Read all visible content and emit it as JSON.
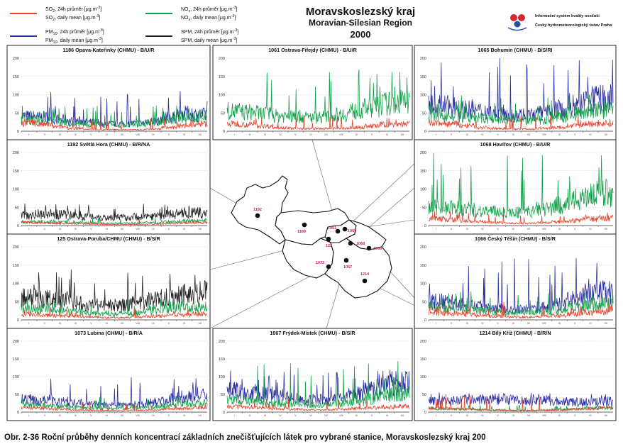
{
  "header": {
    "title": "Moravskoslezský kraj",
    "subtitle": "Moravian-Silesian Region",
    "year": "2000",
    "institute_line1": "Informační systém kvality ovzduší",
    "institute_line2": "Český hydrometeorologický ústav Praha"
  },
  "legend": [
    {
      "key": "so2_24h",
      "label_pre": "SO",
      "sub": "2",
      "label_post": ", 24h průměr [μg.m",
      "sup": "-3",
      "end": "]",
      "color": "#e8412a"
    },
    {
      "key": "so2_dm",
      "label_pre": "SO",
      "sub": "2",
      "label_post": ", daily mean [μg.m",
      "sup": "-3",
      "end": "]",
      "color": "#e8412a"
    },
    {
      "key": "pm10_24h",
      "label_pre": "PM",
      "sub": "10",
      "label_post": ", 24h průměr [μg.m",
      "sup": "-3",
      "end": "]",
      "color": "#2b2fa0"
    },
    {
      "key": "pm10_dm",
      "label_pre": "PM",
      "sub": "10",
      "label_post": ", daily mean [μg.m",
      "sup": "-3",
      "end": "]",
      "color": "#2b2fa0"
    },
    {
      "key": "nox_24h",
      "label_pre": "NO",
      "sub": "x",
      "label_post": ", 24h průměr [μg.m",
      "sup": "-3",
      "end": "]",
      "color": "#13a04a"
    },
    {
      "key": "nox_dm",
      "label_pre": "NO",
      "sub": "x",
      "label_post": ", daily mean [μg.m",
      "sup": "-3",
      "end": "]",
      "color": "#13a04a"
    },
    {
      "key": "spm_24h",
      "label_pre": "SPM, 24h průměr [μg.m",
      "sub": "",
      "label_post": "",
      "sup": "-3",
      "end": "]",
      "color": "#222222"
    },
    {
      "key": "spm_dm",
      "label_pre": "SPM, daily mean [μg.m",
      "sub": "",
      "label_post": "",
      "sup": "-3",
      "end": "]",
      "color": "#222222"
    }
  ],
  "colors": {
    "so2": "#e8412a",
    "pm10": "#2b2fa0",
    "nox": "#13a04a",
    "spm": "#222222",
    "station_dot": "#111111",
    "station_label": "#d0216a"
  },
  "caption": "Obr. 2-36  Roční průběhy denních koncentrací základních znečišťujících látek pro vybrané stanice, Moravskoslezský kraj 200",
  "chart_data": [
    {
      "type": "line",
      "title": "1186 Opava-Kateřinky (CHMU)  -  B/U/R",
      "yticks": [
        0,
        50,
        100,
        150,
        200
      ],
      "ylim": [
        0,
        200
      ],
      "x": "day of year 2000 (1–366)",
      "months": [
        "I",
        "II",
        "III",
        "IV",
        "V",
        "VI",
        "VII",
        "VIII",
        "IX",
        "X",
        "XI",
        "XII"
      ],
      "series": [
        {
          "name": "SO2",
          "color": "#e8412a",
          "monthly_mean": [
            22,
            18,
            12,
            8,
            5,
            4,
            4,
            4,
            6,
            10,
            15,
            20
          ],
          "peak": 35
        },
        {
          "name": "NOx",
          "color": "#13a04a",
          "monthly_mean": [
            32,
            30,
            26,
            20,
            18,
            16,
            16,
            18,
            24,
            32,
            40,
            40
          ],
          "peak": 70
        },
        {
          "name": "PM10",
          "color": "#2b2fa0",
          "monthly_mean": [
            40,
            38,
            32,
            28,
            24,
            20,
            20,
            22,
            28,
            38,
            48,
            45
          ],
          "peak": 110
        }
      ]
    },
    {
      "type": "line",
      "title": "1061 Ostrava-Fifejdy (CHMU)  -  B/U/R",
      "yticks": [
        0,
        50,
        100,
        150,
        200
      ],
      "ylim": [
        0,
        200
      ],
      "months": [
        "I",
        "II",
        "III",
        "IV",
        "V",
        "VI",
        "VII",
        "VIII",
        "IX",
        "X",
        "XI",
        "XII"
      ],
      "series": [
        {
          "name": "SO2",
          "color": "#e8412a",
          "monthly_mean": [
            20,
            18,
            14,
            10,
            8,
            7,
            7,
            8,
            10,
            14,
            18,
            20
          ],
          "peak": 40
        },
        {
          "name": "NOx",
          "color": "#13a04a",
          "monthly_mean": [
            55,
            52,
            48,
            42,
            40,
            38,
            40,
            45,
            55,
            65,
            75,
            80
          ],
          "peak": 170
        }
      ]
    },
    {
      "type": "line",
      "title": "1065 Bohumín (CHMU)  -  B/S/RI",
      "yticks": [
        0,
        50,
        100,
        150,
        200
      ],
      "ylim": [
        0,
        200
      ],
      "months": [
        "I",
        "II",
        "III",
        "IV",
        "V",
        "VI",
        "VII",
        "VIII",
        "IX",
        "X",
        "XI",
        "XII"
      ],
      "series": [
        {
          "name": "SO2",
          "color": "#e8412a",
          "monthly_mean": [
            22,
            20,
            15,
            10,
            8,
            6,
            6,
            8,
            10,
            15,
            20,
            22
          ],
          "peak": 45
        },
        {
          "name": "NOx",
          "color": "#13a04a",
          "monthly_mean": [
            45,
            42,
            38,
            35,
            32,
            30,
            30,
            32,
            40,
            48,
            55,
            58
          ],
          "peak": 100
        },
        {
          "name": "PM10",
          "color": "#2b2fa0",
          "monthly_mean": [
            70,
            68,
            60,
            55,
            50,
            45,
            45,
            50,
            60,
            72,
            85,
            88
          ],
          "peak": 200
        }
      ]
    },
    {
      "type": "line",
      "title": "1192 Světlá Hora (CHMU)  -  B/R/NA",
      "yticks": [
        0,
        50,
        100,
        150,
        200
      ],
      "ylim": [
        0,
        200
      ],
      "months": [
        "I",
        "II",
        "III",
        "IV",
        "V",
        "VI",
        "VII",
        "VIII",
        "IX",
        "X",
        "XI",
        "XII"
      ],
      "series": [
        {
          "name": "SO2",
          "color": "#e8412a",
          "monthly_mean": [
            8,
            7,
            6,
            5,
            4,
            3,
            3,
            3,
            4,
            5,
            7,
            8
          ],
          "peak": 15
        },
        {
          "name": "NOx",
          "color": "#13a04a",
          "monthly_mean": [
            10,
            10,
            9,
            8,
            7,
            6,
            6,
            7,
            8,
            10,
            12,
            12
          ],
          "peak": 20
        },
        {
          "name": "SPM",
          "color": "#222222",
          "monthly_mean": [
            30,
            32,
            30,
            28,
            25,
            22,
            22,
            24,
            26,
            30,
            34,
            34
          ],
          "peak": 60
        }
      ]
    },
    {
      "type": "line",
      "title": "1068 Havířov (CHMU)  -  B/U/R",
      "yticks": [
        0,
        50,
        100,
        150,
        200
      ],
      "ylim": [
        0,
        200
      ],
      "months": [
        "I",
        "II",
        "III",
        "IV",
        "V",
        "VI",
        "VII",
        "VIII",
        "IX",
        "X",
        "XI",
        "XII"
      ],
      "series": [
        {
          "name": "SO2",
          "color": "#e8412a",
          "monthly_mean": [
            18,
            16,
            12,
            10,
            8,
            6,
            6,
            8,
            10,
            14,
            18,
            20
          ],
          "peak": 40
        },
        {
          "name": "NOx",
          "color": "#13a04a",
          "monthly_mean": [
            50,
            48,
            45,
            40,
            38,
            36,
            38,
            45,
            55,
            70,
            85,
            90
          ],
          "peak": 200
        }
      ]
    },
    {
      "type": "line",
      "title": "125 Ostrava-Poruba/CHMU (CHMU)  -  B/S/R",
      "yticks": [
        0,
        50,
        100,
        150,
        200
      ],
      "ylim": [
        0,
        200
      ],
      "months": [
        "I",
        "II",
        "III",
        "IV",
        "V",
        "VI",
        "VII",
        "VIII",
        "IX",
        "X",
        "XI",
        "XII"
      ],
      "series": [
        {
          "name": "SO2",
          "color": "#e8412a",
          "monthly_mean": [
            15,
            14,
            12,
            10,
            8,
            6,
            6,
            8,
            10,
            12,
            14,
            15
          ],
          "peak": 30
        },
        {
          "name": "NOx",
          "color": "#13a04a",
          "monthly_mean": [
            30,
            28,
            25,
            22,
            20,
            18,
            18,
            20,
            25,
            30,
            35,
            38
          ],
          "peak": 60
        },
        {
          "name": "SPM",
          "color": "#222222",
          "monthly_mean": [
            60,
            58,
            55,
            48,
            42,
            40,
            40,
            45,
            55,
            65,
            72,
            75
          ],
          "peak": 140
        }
      ]
    },
    {
      "type": "line",
      "title": "1066 Český Těšín (CHMU)  -  B/S/R",
      "yticks": [
        0,
        50,
        100,
        150,
        200
      ],
      "ylim": [
        0,
        200
      ],
      "months": [
        "I",
        "II",
        "III",
        "IV",
        "V",
        "VI",
        "VII",
        "VIII",
        "IX",
        "X",
        "XI",
        "XII"
      ],
      "series": [
        {
          "name": "SO2",
          "color": "#e8412a",
          "monthly_mean": [
            20,
            18,
            15,
            12,
            10,
            8,
            8,
            10,
            12,
            16,
            20,
            22
          ],
          "peak": 50
        },
        {
          "name": "NOx",
          "color": "#13a04a",
          "monthly_mean": [
            35,
            32,
            30,
            25,
            22,
            20,
            20,
            22,
            28,
            35,
            42,
            45
          ],
          "peak": 80
        },
        {
          "name": "PM10",
          "color": "#2b2fa0",
          "monthly_mean": [
            50,
            48,
            42,
            38,
            34,
            30,
            30,
            34,
            42,
            55,
            70,
            75
          ],
          "peak": 170
        }
      ]
    },
    {
      "type": "line",
      "title": "1073 Lubina (CHMU)  -  B/R/A",
      "yticks": [
        0,
        50,
        100,
        150,
        200
      ],
      "ylim": [
        0,
        200
      ],
      "months": [
        "I",
        "II",
        "III",
        "IV",
        "V",
        "VI",
        "VII",
        "VIII",
        "IX",
        "X",
        "XI",
        "XII"
      ],
      "series": [
        {
          "name": "SO2",
          "color": "#e8412a",
          "monthly_mean": [
            12,
            10,
            8,
            6,
            5,
            4,
            4,
            5,
            6,
            8,
            10,
            12
          ],
          "peak": 25
        },
        {
          "name": "NOx",
          "color": "#13a04a",
          "monthly_mean": [
            20,
            18,
            16,
            14,
            12,
            10,
            10,
            12,
            15,
            18,
            22,
            24
          ],
          "peak": 45
        },
        {
          "name": "PM10",
          "color": "#2b2fa0",
          "monthly_mean": [
            35,
            34,
            30,
            26,
            22,
            20,
            20,
            22,
            28,
            36,
            45,
            48
          ],
          "peak": 100
        }
      ]
    },
    {
      "type": "line",
      "title": "1067 Frýdek-Místek (CHMU)  -  B/S/R",
      "yticks": [
        0,
        50,
        100,
        150,
        200
      ],
      "ylim": [
        0,
        200
      ],
      "months": [
        "I",
        "II",
        "III",
        "IV",
        "V",
        "VI",
        "VII",
        "VIII",
        "IX",
        "X",
        "XI",
        "XII"
      ],
      "series": [
        {
          "name": "SO2",
          "color": "#e8412a",
          "monthly_mean": [
            15,
            14,
            12,
            10,
            8,
            6,
            6,
            8,
            10,
            12,
            14,
            16
          ],
          "peak": 35
        },
        {
          "name": "NOx",
          "color": "#13a04a",
          "monthly_mean": [
            35,
            32,
            28,
            25,
            22,
            20,
            20,
            24,
            30,
            38,
            48,
            55
          ],
          "peak": 145
        },
        {
          "name": "PM10",
          "color": "#2b2fa0",
          "monthly_mean": [
            60,
            55,
            50,
            45,
            40,
            35,
            35,
            40,
            50,
            62,
            75,
            80
          ],
          "peak": 120
        }
      ]
    },
    {
      "type": "line",
      "title": "1214 Bílý Kříž (CHMU)  -  B/R/N",
      "yticks": [
        0,
        50,
        100,
        150,
        200
      ],
      "ylim": [
        0,
        200
      ],
      "months": [
        "I",
        "II",
        "III",
        "IV",
        "V",
        "VI",
        "VII",
        "VIII",
        "IX",
        "X",
        "XI",
        "XII"
      ],
      "series": [
        {
          "name": "SO2",
          "color": "#e8412a",
          "monthly_mean": [
            12,
            10,
            8,
            6,
            5,
            4,
            4,
            5,
            6,
            8,
            10,
            12
          ],
          "peak": 55
        },
        {
          "name": "NOx",
          "color": "#13a04a",
          "monthly_mean": [
            10,
            9,
            8,
            7,
            6,
            5,
            5,
            6,
            7,
            9,
            11,
            12
          ],
          "peak": 20
        },
        {
          "name": "PM10",
          "color": "#2b2fa0",
          "monthly_mean": [
            30,
            32,
            34,
            35,
            36,
            34,
            32,
            32,
            30,
            28,
            28,
            30
          ],
          "peak": 55
        }
      ]
    }
  ],
  "map": {
    "stations": [
      {
        "id": "1192",
        "panel": 3
      },
      {
        "id": "1189",
        "panel": -1
      },
      {
        "id": "125",
        "panel": 5
      },
      {
        "id": "1061",
        "panel": 1
      },
      {
        "id": "1065",
        "panel": 2
      },
      {
        "id": "1068",
        "panel": 4
      },
      {
        "id": "1066",
        "panel": 6
      },
      {
        "id": "1073",
        "panel": 7
      },
      {
        "id": "1067",
        "panel": 8
      },
      {
        "id": "1214",
        "panel": 9
      }
    ]
  }
}
